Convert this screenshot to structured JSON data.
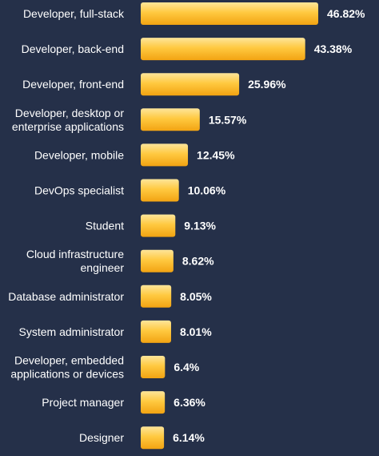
{
  "chart_data": {
    "type": "bar",
    "orientation": "horizontal",
    "title": "",
    "xlabel": "",
    "ylabel": "",
    "unit": "%",
    "xlim": [
      0,
      46.82
    ],
    "grid": false,
    "legend": "none",
    "colors": {
      "background": "#253049",
      "bar_light": "#fde59a",
      "bar_mid": "#ffc940",
      "bar_dark": "#f2a312",
      "text": "#ffffff"
    },
    "categories": [
      [
        "Developer, full-stack"
      ],
      [
        "Developer, back-end"
      ],
      [
        "Developer, front-end"
      ],
      [
        "Developer, desktop or",
        "enterprise applications"
      ],
      [
        "Developer, mobile"
      ],
      [
        "DevOps specialist"
      ],
      [
        "Student"
      ],
      [
        "Cloud infrastructure",
        "engineer"
      ],
      [
        "Database administrator"
      ],
      [
        "System administrator"
      ],
      [
        "Developer, embedded",
        "applications or devices"
      ],
      [
        "Project manager"
      ],
      [
        "Designer"
      ]
    ],
    "values": [
      46.82,
      43.38,
      25.96,
      15.57,
      12.45,
      10.06,
      9.13,
      8.62,
      8.05,
      8.01,
      6.4,
      6.36,
      6.14
    ],
    "value_labels": [
      "46.82%",
      "43.38%",
      "25.96%",
      "15.57%",
      "12.45%",
      "10.06%",
      "9.13%",
      "8.62%",
      "8.05%",
      "8.01%",
      "6.4%",
      "6.36%",
      "6.14%"
    ]
  }
}
